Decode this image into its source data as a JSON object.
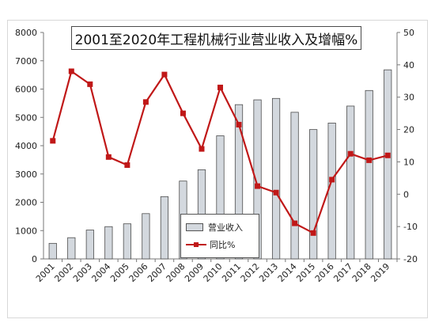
{
  "chart_data": {
    "type": "bar",
    "title": "2001至2020年工程机械行业营业收入及增幅%",
    "categories": [
      "2001",
      "2002",
      "2003",
      "2004",
      "2005",
      "2006",
      "2007",
      "2008",
      "2009",
      "2010",
      "2011",
      "2012",
      "2013",
      "2014",
      "2015",
      "2016",
      "2017",
      "2018",
      "2019"
    ],
    "series": [
      {
        "name": "营业收入",
        "type": "bar",
        "axis": "left",
        "color": "#d3d8de",
        "values": [
          550,
          750,
          1020,
          1140,
          1240,
          1600,
          2200,
          2750,
          3150,
          4350,
          5450,
          5620,
          5670,
          5180,
          4570,
          4800,
          5400,
          5950,
          6680
        ]
      },
      {
        "name": "同比%",
        "type": "line",
        "axis": "right",
        "color": "#c01818",
        "values": [
          16.5,
          38,
          34,
          11.5,
          9,
          28.5,
          37,
          25,
          14,
          33,
          21.5,
          2.5,
          0.5,
          -9,
          -12,
          4.5,
          12.5,
          10.5,
          12
        ]
      }
    ],
    "y_left": {
      "ylim": [
        0,
        8000
      ],
      "ticks": [
        "0",
        "1000",
        "2000",
        "3000",
        "4000",
        "5000",
        "6000",
        "7000",
        "8000"
      ]
    },
    "y_right": {
      "ylim": [
        -20,
        50
      ],
      "ticks": [
        "-20",
        "-10",
        "0",
        "10",
        "20",
        "30",
        "40",
        "50"
      ]
    },
    "grid": false,
    "legend": "bottom-center"
  }
}
